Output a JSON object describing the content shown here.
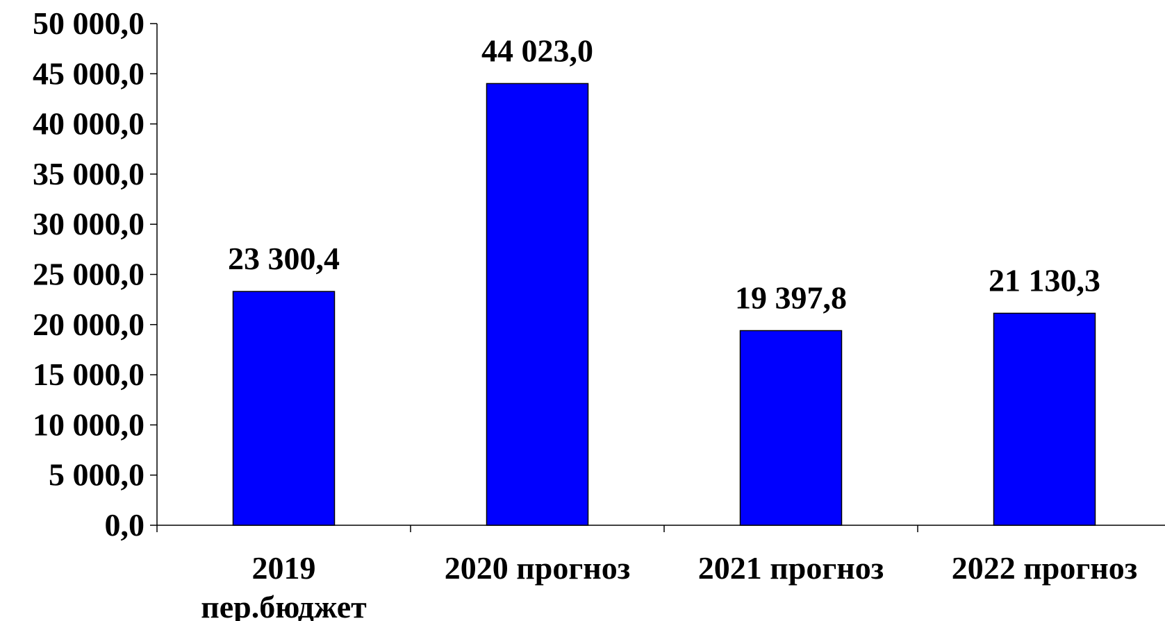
{
  "chart_data": {
    "type": "bar",
    "categories": [
      "2019 пер.бюджет",
      "2020 прогноз",
      "2021 прогноз",
      "2022 прогноз"
    ],
    "category_lines": [
      [
        "2019",
        "пер.бюджет"
      ],
      [
        "2020 прогноз"
      ],
      [
        "2021 прогноз"
      ],
      [
        "2022 прогноз"
      ]
    ],
    "values": [
      23300.4,
      44023.0,
      19397.8,
      21130.3
    ],
    "value_labels": [
      "23 300,4",
      "44 023,0",
      "19 397,8",
      "21 130,3"
    ],
    "ylim": [
      0,
      50000
    ],
    "yticks": [
      0,
      5000,
      10000,
      15000,
      20000,
      25000,
      30000,
      35000,
      40000,
      45000,
      50000
    ],
    "ytick_labels": [
      "0,0",
      "5 000,0",
      "10 000,0",
      "15 000,0",
      "20 000,0",
      "25 000,0",
      "30 000,0",
      "35 000,0",
      "40 000,0",
      "45 000,0",
      "50 000,0"
    ],
    "title": "",
    "xlabel": "",
    "ylabel": "",
    "grid": false,
    "legend": "none",
    "bar_color": "#0000ff",
    "bar_edge_color": "#000000"
  }
}
